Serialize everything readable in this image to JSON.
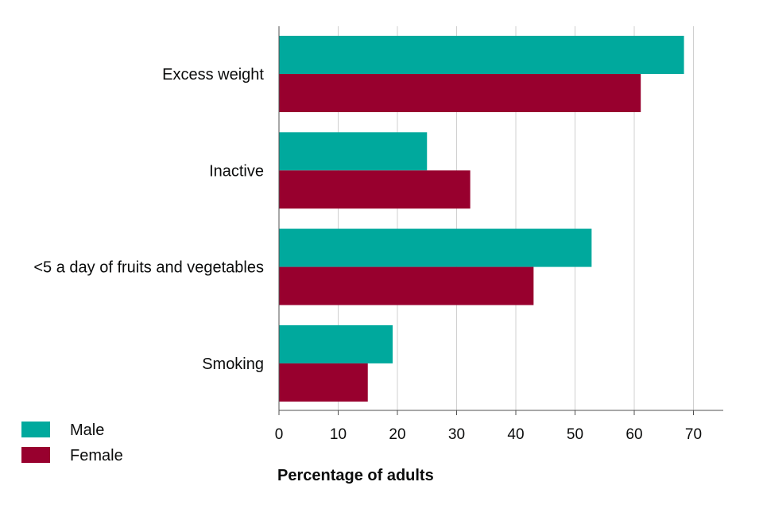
{
  "chart_data": {
    "type": "bar",
    "orientation": "horizontal",
    "categories": [
      "Excess weight",
      "Inactive",
      "<5 a day of fruits and vegetables",
      "Smoking"
    ],
    "series": [
      {
        "name": "Male",
        "color": "#00a99d",
        "values": [
          68.4,
          25.0,
          52.8,
          19.2
        ]
      },
      {
        "name": "Female",
        "color": "#98002e",
        "values": [
          61.1,
          32.3,
          43.0,
          15.0
        ]
      }
    ],
    "xticks": [
      0,
      10,
      20,
      30,
      40,
      50,
      60,
      70
    ],
    "xlim": [
      0,
      75
    ],
    "xlabel": "Percentage of adults",
    "ylabel": "",
    "title": "",
    "grid": true,
    "legend_position": "bottom-left"
  }
}
